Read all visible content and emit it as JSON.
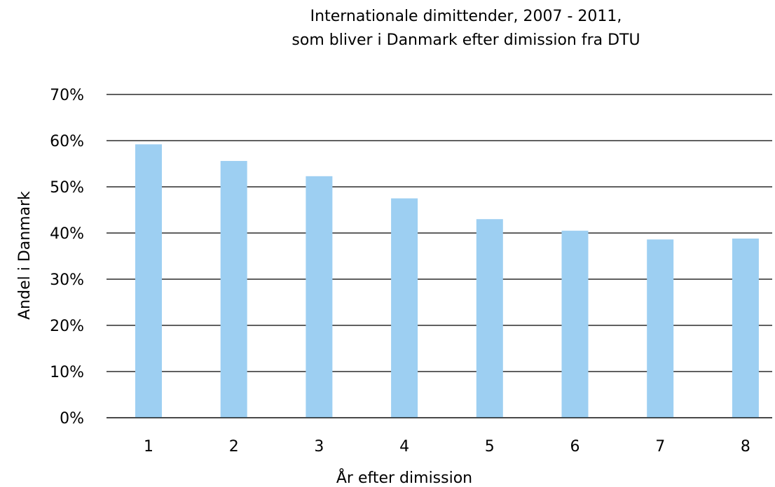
{
  "chart_data": {
    "type": "bar",
    "title_lines": [
      "Internationale dimittender, 2007 - 2011,",
      "som bliver i Danmark efter dimission fra DTU"
    ],
    "xlabel": "År efter dimission",
    "ylabel": "Andel i Danmark",
    "categories": [
      "1",
      "2",
      "3",
      "4",
      "5",
      "6",
      "7",
      "8"
    ],
    "values": [
      59.2,
      55.6,
      52.3,
      47.5,
      43.0,
      40.5,
      38.6,
      38.8
    ],
    "ylim": [
      0,
      70
    ],
    "yticks": [
      0,
      10,
      20,
      30,
      40,
      50,
      60,
      70
    ],
    "ytick_labels": [
      "0%",
      "10%",
      "20%",
      "30%",
      "40%",
      "50%",
      "60%",
      "70%"
    ],
    "grid": true,
    "legend": "none",
    "bar_color": "#9DCFF2"
  }
}
